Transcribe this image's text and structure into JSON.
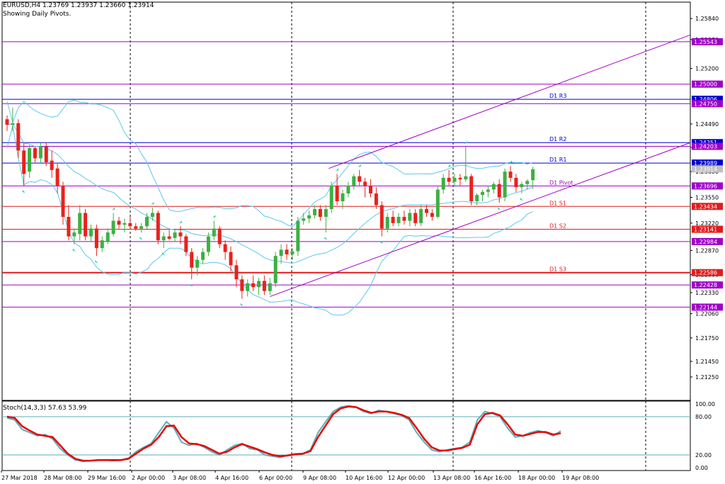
{
  "header": {
    "symbol_line": "EURUSD,H4  1.23769 1.23937 1.23660 1.23914",
    "subtitle": "Showing Daily Pivots."
  },
  "stoch_header": "Stoch(14,3,3) 57.63 53.99",
  "colors": {
    "bull": "#3cb043",
    "bear": "#e8221b",
    "bollinger": "#5bc8f0",
    "pivot_line": "#a000c8",
    "resistance": "#0000d0",
    "support": "#e01c1c",
    "stoch_main": "#5aaeb8",
    "stoch_signal": "#e80000",
    "arrow": "#28d0a8"
  },
  "chart_data": [
    {
      "type": "candlestick",
      "symbol": "EURUSD",
      "timeframe": "H4",
      "ylim": [
        1.2095,
        1.2605
      ],
      "y_ticks": [
        "1.25840",
        "1.25570",
        "1.25200",
        "1.24490",
        "1.24190",
        "1.23880",
        "1.23550",
        "1.23220",
        "1.22870",
        "1.22560",
        "1.22330",
        "1.22060",
        "1.21750",
        "1.21450",
        "1.21250"
      ],
      "x_ticks": [
        "27 Mar 2018",
        "28 Mar 08:00",
        "29 Mar 16:00",
        "2 Apr 00:00",
        "3 Apr 08:00",
        "4 Apr 16:00",
        "6 Apr 00:00",
        "9 Apr 08:00",
        "10 Apr 16:00",
        "12 Apr 00:00",
        "13 Apr 08:00",
        "16 Apr 16:00",
        "18 Apr 00:00",
        "19 Apr 08:00"
      ],
      "levels": [
        {
          "label": "1.25543",
          "value": 1.25543,
          "kind": "pivot"
        },
        {
          "label": "1.25000",
          "value": 1.25,
          "kind": "pivot"
        },
        {
          "label": "1.24806",
          "value": 1.24806,
          "kind": "resistance",
          "name": "D1 R3"
        },
        {
          "label": "1.24750",
          "value": 1.2475,
          "kind": "pivot"
        },
        {
          "label": "1.24251",
          "value": 1.24251,
          "kind": "resistance",
          "name": "D1 R2"
        },
        {
          "label": "1.24203",
          "value": 1.24203,
          "kind": "pivot"
        },
        {
          "label": "1.23989",
          "value": 1.23989,
          "kind": "resistance",
          "name": "D1 R1"
        },
        {
          "label": "1.23914",
          "value": 1.23914,
          "kind": "price"
        },
        {
          "label": "1.23696",
          "value": 1.23696,
          "kind": "pivot",
          "name": "D1 Pivot"
        },
        {
          "label": "1.23434",
          "value": 1.23434,
          "kind": "support",
          "name": "D1 S1"
        },
        {
          "label": "1.23141",
          "value": 1.23141,
          "kind": "support",
          "name": "D1 S2"
        },
        {
          "label": "1.22984",
          "value": 1.22984,
          "kind": "pivot"
        },
        {
          "label": "1.22586",
          "value": 1.22586,
          "kind": "support",
          "name": "D1 S3"
        },
        {
          "label": "1.22428",
          "value": 1.22428,
          "kind": "pivot"
        },
        {
          "label": "1.22144",
          "value": 1.22144,
          "kind": "pivot"
        }
      ],
      "candles": [
        [
          1.2455,
          1.246,
          1.244,
          1.2448
        ],
        [
          1.2448,
          1.247,
          1.244,
          1.245
        ],
        [
          1.245,
          1.2455,
          1.2405,
          1.2415
        ],
        [
          1.2415,
          1.2425,
          1.237,
          1.2385
        ],
        [
          1.2388,
          1.2422,
          1.238,
          1.2418
        ],
        [
          1.2418,
          1.242,
          1.24,
          1.2405
        ],
        [
          1.2405,
          1.2425,
          1.2398,
          1.242
        ],
        [
          1.242,
          1.2425,
          1.2395,
          1.24
        ],
        [
          1.2402,
          1.2415,
          1.238,
          1.239
        ],
        [
          1.2392,
          1.2398,
          1.236,
          1.237
        ],
        [
          1.237,
          1.2375,
          1.232,
          1.233
        ],
        [
          1.233,
          1.2345,
          1.23,
          1.2305
        ],
        [
          1.2305,
          1.2315,
          1.2295,
          1.231
        ],
        [
          1.2308,
          1.2345,
          1.23,
          1.2335
        ],
        [
          1.2335,
          1.234,
          1.23,
          1.2305
        ],
        [
          1.2305,
          1.232,
          1.2298,
          1.2315
        ],
        [
          1.2315,
          1.232,
          1.228,
          1.229
        ],
        [
          1.229,
          1.2305,
          1.2285,
          1.23
        ],
        [
          1.2298,
          1.2315,
          1.2295,
          1.231
        ],
        [
          1.2308,
          1.2335,
          1.2305,
          1.2325
        ],
        [
          1.2325,
          1.233,
          1.2315,
          1.232
        ],
        [
          1.232,
          1.2328,
          1.231,
          1.2322
        ],
        [
          1.2322,
          1.233,
          1.2315,
          1.2318
        ],
        [
          1.2318,
          1.2322,
          1.2312,
          1.2315
        ],
        [
          1.2315,
          1.2322,
          1.231,
          1.2318
        ],
        [
          1.2318,
          1.2335,
          1.2315,
          1.233
        ],
        [
          1.233,
          1.2342,
          1.2325,
          1.2335
        ],
        [
          1.2335,
          1.2338,
          1.2295,
          1.23
        ],
        [
          1.23,
          1.231,
          1.229,
          1.2305
        ],
        [
          1.2305,
          1.2315,
          1.23,
          1.2302
        ],
        [
          1.2303,
          1.2315,
          1.2298,
          1.231
        ],
        [
          1.231,
          1.2318,
          1.2295,
          1.2305
        ],
        [
          1.2305,
          1.2308,
          1.228,
          1.2285
        ],
        [
          1.2285,
          1.229,
          1.225,
          1.2265
        ],
        [
          1.2265,
          1.228,
          1.2255,
          1.2275
        ],
        [
          1.2275,
          1.229,
          1.227,
          1.2285
        ],
        [
          1.2285,
          1.231,
          1.228,
          1.2305
        ],
        [
          1.2305,
          1.2325,
          1.23,
          1.2315
        ],
        [
          1.2315,
          1.2318,
          1.229,
          1.2295
        ],
        [
          1.2295,
          1.23,
          1.2275,
          1.2285
        ],
        [
          1.2285,
          1.2292,
          1.226,
          1.2268
        ],
        [
          1.2268,
          1.2275,
          1.224,
          1.225
        ],
        [
          1.225,
          1.2255,
          1.2225,
          1.2235
        ],
        [
          1.2235,
          1.225,
          1.2228,
          1.2245
        ],
        [
          1.2245,
          1.2255,
          1.2235,
          1.224
        ],
        [
          1.224,
          1.2252,
          1.223,
          1.2248
        ],
        [
          1.2248,
          1.2255,
          1.223,
          1.2235
        ],
        [
          1.2235,
          1.2252,
          1.223,
          1.2245
        ],
        [
          1.2245,
          1.2285,
          1.224,
          1.228
        ],
        [
          1.228,
          1.2295,
          1.227,
          1.2288
        ],
        [
          1.2288,
          1.2295,
          1.2275,
          1.2282
        ],
        [
          1.2282,
          1.229,
          1.2275,
          1.2286
        ],
        [
          1.2286,
          1.233,
          1.228,
          1.2325
        ],
        [
          1.2325,
          1.2335,
          1.232,
          1.2328
        ],
        [
          1.2328,
          1.2338,
          1.2322,
          1.2332
        ],
        [
          1.2332,
          1.2345,
          1.2328,
          1.234
        ],
        [
          1.234,
          1.2345,
          1.2325,
          1.233
        ],
        [
          1.233,
          1.2345,
          1.231,
          1.234
        ],
        [
          1.234,
          1.2375,
          1.2335,
          1.237
        ],
        [
          1.237,
          1.2385,
          1.2345,
          1.235
        ],
        [
          1.235,
          1.2365,
          1.234,
          1.236
        ],
        [
          1.236,
          1.2375,
          1.2355,
          1.237
        ],
        [
          1.237,
          1.2385,
          1.2365,
          1.2382
        ],
        [
          1.2382,
          1.239,
          1.237,
          1.2375
        ],
        [
          1.2375,
          1.238,
          1.2355,
          1.237
        ],
        [
          1.237,
          1.2378,
          1.2355,
          1.236
        ],
        [
          1.236,
          1.2368,
          1.234,
          1.2345
        ],
        [
          1.2345,
          1.235,
          1.2305,
          1.2315
        ],
        [
          1.2315,
          1.2335,
          1.231,
          1.233
        ],
        [
          1.233,
          1.2338,
          1.2318,
          1.2322
        ],
        [
          1.2322,
          1.2335,
          1.2318,
          1.233
        ],
        [
          1.233,
          1.2338,
          1.232,
          1.2325
        ],
        [
          1.2325,
          1.234,
          1.2318,
          1.2335
        ],
        [
          1.2335,
          1.234,
          1.2318,
          1.2322
        ],
        [
          1.2322,
          1.2345,
          1.2318,
          1.234
        ],
        [
          1.234,
          1.2345,
          1.233,
          1.2335
        ],
        [
          1.2335,
          1.234,
          1.2325,
          1.233
        ],
        [
          1.233,
          1.237,
          1.2328,
          1.2365
        ],
        [
          1.2365,
          1.2385,
          1.236,
          1.238
        ],
        [
          1.238,
          1.239,
          1.237,
          1.2375
        ],
        [
          1.2375,
          1.2385,
          1.237,
          1.238
        ],
        [
          1.238,
          1.2385,
          1.237,
          1.2378
        ],
        [
          1.2378,
          1.242,
          1.2375,
          1.2382
        ],
        [
          1.2382,
          1.2385,
          1.2345,
          1.235
        ],
        [
          1.235,
          1.236,
          1.2345,
          1.2358
        ],
        [
          1.2358,
          1.2365,
          1.235,
          1.2362
        ],
        [
          1.2362,
          1.237,
          1.2355,
          1.2365
        ],
        [
          1.2365,
          1.2375,
          1.236,
          1.2372
        ],
        [
          1.2372,
          1.2378,
          1.2348,
          1.2355
        ],
        [
          1.2355,
          1.2392,
          1.235,
          1.2388
        ],
        [
          1.2388,
          1.2395,
          1.2375,
          1.238
        ],
        [
          1.238,
          1.2385,
          1.2362,
          1.2368
        ],
        [
          1.2368,
          1.2375,
          1.236,
          1.2372
        ],
        [
          1.2372,
          1.2378,
          1.2365,
          1.2376
        ],
        [
          1.2377,
          1.2394,
          1.2366,
          1.2391
        ]
      ],
      "xlabel": "",
      "ylabel": ""
    },
    {
      "type": "line",
      "name": "Stoch(14,3,3)",
      "ylim": [
        0,
        100
      ],
      "y_ticks": [
        "100.00",
        "80.00",
        "20.00",
        "0.00"
      ],
      "levels": [
        80,
        20
      ],
      "series": [
        {
          "name": "main",
          "values": [
            78,
            75,
            60,
            55,
            50,
            52,
            45,
            30,
            20,
            12,
            10,
            11,
            12,
            12,
            11,
            12,
            15,
            25,
            32,
            38,
            55,
            72,
            62,
            40,
            35,
            38,
            32,
            25,
            20,
            28,
            35,
            38,
            30,
            28,
            20,
            18,
            16,
            20,
            22,
            22,
            28,
            55,
            72,
            88,
            95,
            97,
            95,
            88,
            85,
            90,
            88,
            85,
            82,
            75,
            55,
            40,
            28,
            25,
            28,
            30,
            32,
            40,
            75,
            88,
            85,
            80,
            62,
            48,
            50,
            55,
            58,
            55,
            50,
            57.6
          ]
        },
        {
          "name": "signal",
          "values": [
            80,
            78,
            65,
            58,
            52,
            50,
            48,
            35,
            22,
            14,
            11,
            11,
            12,
            12,
            12,
            12,
            14,
            22,
            30,
            36,
            48,
            65,
            66,
            48,
            38,
            37,
            34,
            28,
            22,
            25,
            32,
            37,
            33,
            29,
            24,
            20,
            18,
            19,
            21,
            22,
            26,
            48,
            66,
            84,
            93,
            96,
            95,
            90,
            86,
            88,
            88,
            86,
            83,
            78,
            62,
            45,
            32,
            27,
            27,
            29,
            31,
            36,
            68,
            84,
            86,
            82,
            68,
            52,
            50,
            53,
            56,
            56,
            52,
            54
          ]
        }
      ],
      "xlabel": "",
      "ylabel": ""
    }
  ]
}
